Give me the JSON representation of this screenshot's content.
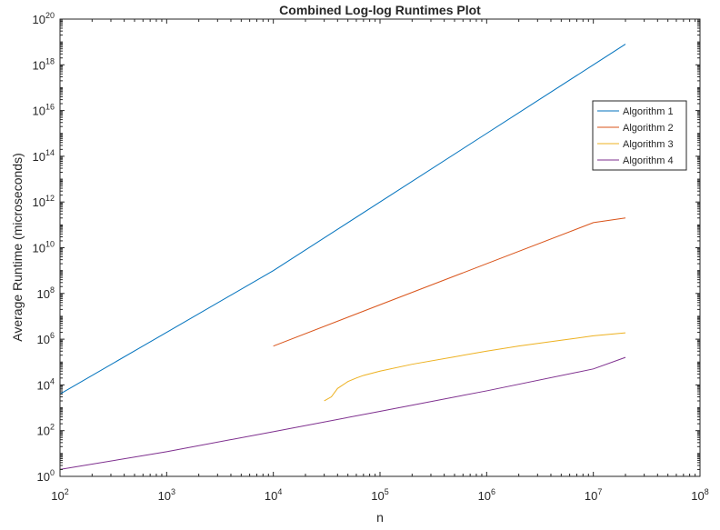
{
  "chart_data": {
    "type": "line",
    "title": "Combined Log-log Runtimes Plot",
    "xlabel": "n",
    "ylabel": "Average Runtime (microseconds)",
    "xscale": "log",
    "yscale": "log",
    "xlim": [
      100,
      100000000
    ],
    "ylim": [
      1,
      100000000000000000000
    ],
    "x_ticks": [
      {
        "base": "10",
        "exp": "2",
        "value": 100
      },
      {
        "base": "10",
        "exp": "3",
        "value": 1000
      },
      {
        "base": "10",
        "exp": "4",
        "value": 10000
      },
      {
        "base": "10",
        "exp": "5",
        "value": 100000
      },
      {
        "base": "10",
        "exp": "6",
        "value": 1000000
      },
      {
        "base": "10",
        "exp": "7",
        "value": 10000000
      },
      {
        "base": "10",
        "exp": "8",
        "value": 100000000
      }
    ],
    "y_ticks": [
      {
        "base": "10",
        "exp": "0",
        "value": 1
      },
      {
        "base": "10",
        "exp": "2",
        "value": 100
      },
      {
        "base": "10",
        "exp": "4",
        "value": 10000
      },
      {
        "base": "10",
        "exp": "6",
        "value": 1000000
      },
      {
        "base": "10",
        "exp": "8",
        "value": 100000000
      },
      {
        "base": "10",
        "exp": "10",
        "value": 10000000000
      },
      {
        "base": "10",
        "exp": "12",
        "value": 1000000000000
      },
      {
        "base": "10",
        "exp": "14",
        "value": 100000000000000
      },
      {
        "base": "10",
        "exp": "16",
        "value": 10000000000000000
      },
      {
        "base": "10",
        "exp": "18",
        "value": 1000000000000000000
      },
      {
        "base": "10",
        "exp": "20",
        "value": 100000000000000000000
      }
    ],
    "grid": false,
    "box": true,
    "legend_position": "top-right",
    "series": [
      {
        "name": "Algorithm 1",
        "color": "#0072BD",
        "x": [
          100,
          1000,
          10000,
          100000,
          1000000,
          10000000,
          20000000
        ],
        "y": [
          4000,
          2000000,
          1000000000,
          1000000000000,
          1000000000000000,
          1000000000000000000,
          8000000000000000000
        ]
      },
      {
        "name": "Algorithm 2",
        "color": "#D95319",
        "x": [
          10000,
          100000,
          1000000,
          10000000,
          20000000
        ],
        "y": [
          500000,
          32000000,
          2000000000,
          125000000000,
          200000000000
        ]
      },
      {
        "name": "Algorithm 3",
        "color": "#EDB120",
        "x": [
          30000,
          35000,
          40000,
          50000,
          60000,
          70000,
          100000,
          200000,
          500000,
          1000000,
          2000000,
          5000000,
          10000000,
          20000000
        ],
        "y": [
          2000,
          3000,
          7000,
          14000,
          20000,
          26000,
          40000,
          80000,
          170000,
          300000,
          500000,
          900000,
          1400000,
          1900000
        ]
      },
      {
        "name": "Algorithm 4",
        "color": "#7E2F8E",
        "x": [
          100,
          1000,
          10000,
          100000,
          1000000,
          10000000,
          20000000
        ],
        "y": [
          2,
          12,
          90,
          700,
          5500,
          50000,
          160000
        ]
      }
    ]
  }
}
